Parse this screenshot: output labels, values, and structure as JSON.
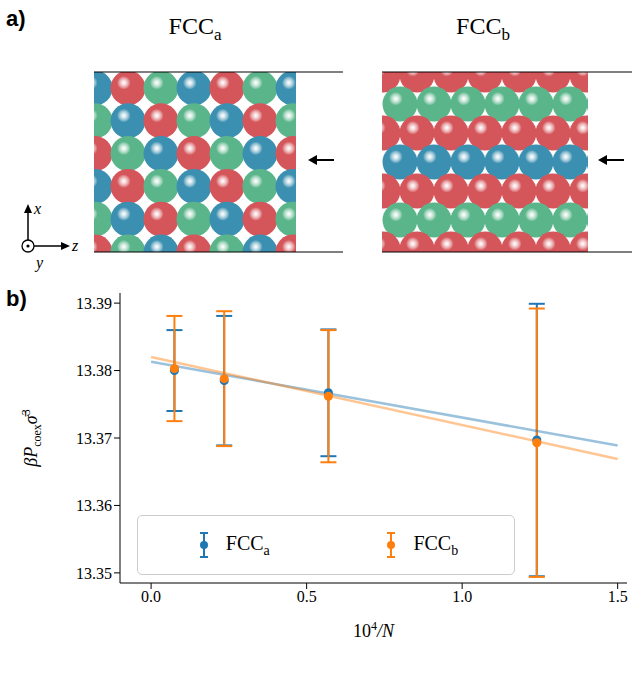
{
  "panel_a": {
    "label": "a)",
    "diagrams": [
      {
        "title": {
          "main": "FCC",
          "sub": "a"
        }
      },
      {
        "title": {
          "main": "FCC",
          "sub": "b"
        }
      }
    ],
    "axes": [
      "x",
      "y",
      "z"
    ]
  },
  "chart_data": {
    "type": "scatter",
    "panel_label": "b)",
    "xlabel": {
      "base": "10",
      "sup": "4",
      "rest": "/N"
    },
    "ylabel": {
      "main": "βP",
      "sub": "coex",
      "main2": "σ̄",
      "sup": "3"
    },
    "xlim": [
      -0.1,
      1.53
    ],
    "xticks": [
      {
        "value": 0,
        "label": "0.0"
      },
      0.5,
      {
        "value": 1,
        "label": "1.0"
      },
      1.5
    ],
    "ylim": [
      13.3485,
      13.3915
    ],
    "yticks": [
      13.35,
      13.36,
      13.37,
      13.38,
      13.39
    ],
    "legend": "lower left",
    "series": [
      {
        "name": "FCC",
        "name_sub": "a",
        "color": "#1f77b4",
        "marker": "circle",
        "x": [
          0.075,
          0.235,
          0.57,
          1.24
        ],
        "values": [
          13.38,
          13.3785,
          13.3767,
          13.3697
        ],
        "errors": [
          0.006,
          0.0096,
          0.0094,
          0.0202
        ],
        "fit": {
          "x": [
            0,
            1.5
          ],
          "values": [
            13.3813,
            13.3689
          ]
        }
      },
      {
        "name": "FCC",
        "name_sub": "b",
        "color": "#ff7f0e",
        "marker": "circle",
        "x": [
          0.075,
          0.235,
          0.57,
          1.24
        ],
        "values": [
          13.3803,
          13.3788,
          13.3762,
          13.3693
        ],
        "errors": [
          0.0078,
          0.01,
          0.0098,
          0.0199
        ],
        "fit": {
          "x": [
            0,
            1.5
          ],
          "values": [
            13.382,
            13.3669
          ]
        }
      }
    ]
  }
}
